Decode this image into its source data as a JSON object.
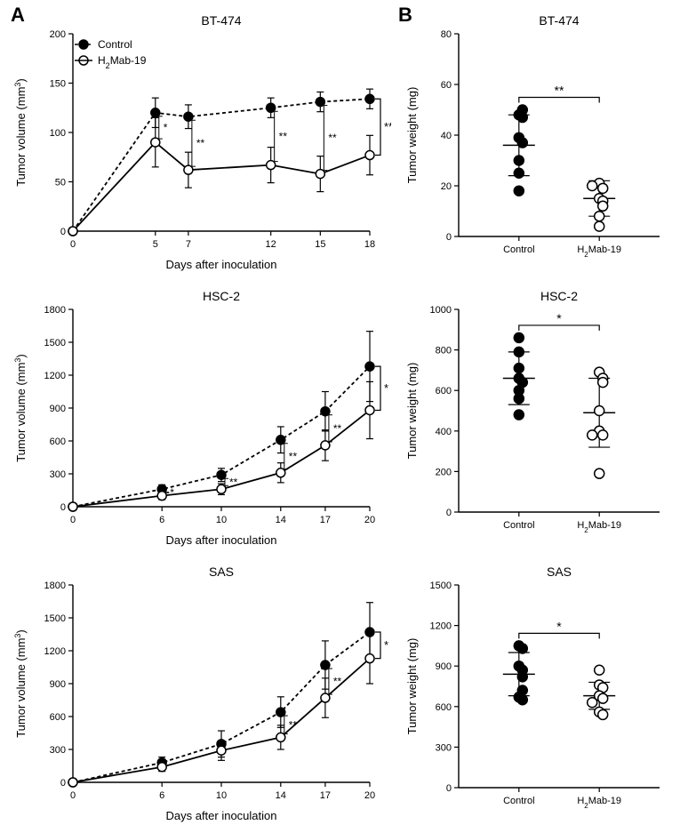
{
  "panelA_label": "A",
  "panelB_label": "B",
  "colA": {
    "xlabel": "Days after inoculation",
    "ylabel": "Tumor volume (mm",
    "ylabel_sup": "3",
    "ylabel_suffix": ")",
    "legend": {
      "control": "Control",
      "treat": "H",
      "treat_sub": "2",
      "treat_suffix": "Mab-19"
    },
    "title_fontsize": 14,
    "label_fontsize": 13,
    "tick_fontsize": 11,
    "axis_color": "#000000",
    "line_width": 1.8,
    "marker_radius": 5,
    "control_marker_fill": "#000000",
    "treat_marker_fill": "#ffffff",
    "treat_marker_stroke": "#000000",
    "control_dash": "4,3",
    "treat_dash": "none",
    "subplots": [
      {
        "title": "BT-474",
        "ylim": [
          0,
          200
        ],
        "ytick_step": 50,
        "xticks": [
          0,
          5,
          7,
          12,
          15,
          18
        ],
        "control": {
          "x": [
            0,
            5,
            7,
            12,
            15,
            18
          ],
          "y": [
            0,
            120,
            116,
            125,
            131,
            134
          ],
          "err": [
            0,
            15,
            12,
            10,
            10,
            10
          ]
        },
        "treat": {
          "x": [
            0,
            5,
            7,
            12,
            15,
            18
          ],
          "y": [
            0,
            90,
            62,
            67,
            58,
            77
          ],
          "err": [
            0,
            25,
            18,
            18,
            18,
            20
          ]
        },
        "annotations": [
          {
            "x": 5,
            "sym": "*",
            "yref": "between"
          },
          {
            "x": 7,
            "sym": "**",
            "yref": "between"
          },
          {
            "x": 12,
            "sym": "**",
            "yref": "between"
          },
          {
            "x": 15,
            "sym": "**",
            "yref": "between"
          },
          {
            "x": 18,
            "sym": "**",
            "yref": "end-bracket"
          }
        ]
      },
      {
        "title": "HSC-2",
        "ylim": [
          0,
          1800
        ],
        "ytick_step": 300,
        "xticks": [
          0,
          6,
          10,
          14,
          17,
          20
        ],
        "control": {
          "x": [
            0,
            6,
            10,
            14,
            17,
            20
          ],
          "y": [
            0,
            160,
            290,
            610,
            870,
            1280
          ],
          "err": [
            0,
            40,
            60,
            120,
            180,
            320
          ]
        },
        "treat": {
          "x": [
            0,
            6,
            10,
            14,
            17,
            20
          ],
          "y": [
            0,
            100,
            160,
            310,
            560,
            880
          ],
          "err": [
            0,
            35,
            50,
            90,
            140,
            260
          ]
        },
        "annotations": [
          {
            "x": 6,
            "sym": "*",
            "yref": "between"
          },
          {
            "x": 10,
            "sym": "**",
            "yref": "between"
          },
          {
            "x": 14,
            "sym": "**",
            "yref": "between"
          },
          {
            "x": 17,
            "sym": "**",
            "yref": "between"
          },
          {
            "x": 20,
            "sym": "*",
            "yref": "end-bracket"
          }
        ]
      },
      {
        "title": "SAS",
        "ylim": [
          0,
          1800
        ],
        "ytick_step": 300,
        "xticks": [
          0,
          6,
          10,
          14,
          17,
          20
        ],
        "control": {
          "x": [
            0,
            6,
            10,
            14,
            17,
            20
          ],
          "y": [
            0,
            180,
            350,
            640,
            1070,
            1370
          ],
          "err": [
            0,
            50,
            120,
            140,
            220,
            270
          ]
        },
        "treat": {
          "x": [
            0,
            6,
            10,
            14,
            17,
            20
          ],
          "y": [
            0,
            140,
            290,
            410,
            770,
            1130
          ],
          "err": [
            0,
            40,
            90,
            110,
            180,
            230
          ]
        },
        "annotations": [
          {
            "x": 14,
            "sym": "**",
            "yref": "between"
          },
          {
            "x": 17,
            "sym": "**",
            "yref": "between"
          },
          {
            "x": 20,
            "sym": "*",
            "yref": "end-bracket"
          }
        ]
      }
    ]
  },
  "colB": {
    "ylabel": "Tumor weight (mg)",
    "xcats": [
      "Control",
      "H2Mab-19"
    ],
    "xcats_display": {
      "control": "Control",
      "treat_prefix": "H",
      "treat_sub": "2",
      "treat_suffix": "Mab-19"
    },
    "title_fontsize": 14,
    "label_fontsize": 13,
    "tick_fontsize": 11,
    "marker_radius": 5.5,
    "control_marker_fill": "#000000",
    "treat_marker_fill": "#ffffff",
    "treat_marker_stroke": "#000000",
    "mean_bar_color": "#000000",
    "mean_bar_width": 1.5,
    "subplots": [
      {
        "title": "BT-474",
        "ylim": [
          0,
          80
        ],
        "ytick_step": 20,
        "control_points": [
          48,
          50,
          30,
          39,
          37,
          18,
          47,
          25
        ],
        "treat_points": [
          21,
          19,
          15,
          14,
          12,
          8,
          4,
          20
        ],
        "control_mean": 36,
        "control_sd": 12,
        "treat_mean": 15,
        "treat_sd": 7,
        "sig": "**"
      },
      {
        "title": "HSC-2",
        "ylim": [
          0,
          1000
        ],
        "ytick_step": 200,
        "control_points": [
          860,
          790,
          710,
          660,
          640,
          600,
          560,
          480
        ],
        "treat_points": [
          690,
          660,
          640,
          500,
          400,
          380,
          380,
          190
        ],
        "control_mean": 660,
        "control_sd": 130,
        "treat_mean": 490,
        "treat_sd": 170,
        "sig": "*"
      },
      {
        "title": "SAS",
        "ylim": [
          0,
          1500
        ],
        "ytick_step": 300,
        "control_points": [
          1050,
          1030,
          900,
          870,
          820,
          670,
          720,
          650
        ],
        "treat_points": [
          870,
          760,
          740,
          680,
          660,
          630,
          560,
          540
        ],
        "control_mean": 840,
        "control_sd": 160,
        "treat_mean": 680,
        "treat_sd": 100,
        "sig": "*"
      }
    ]
  }
}
